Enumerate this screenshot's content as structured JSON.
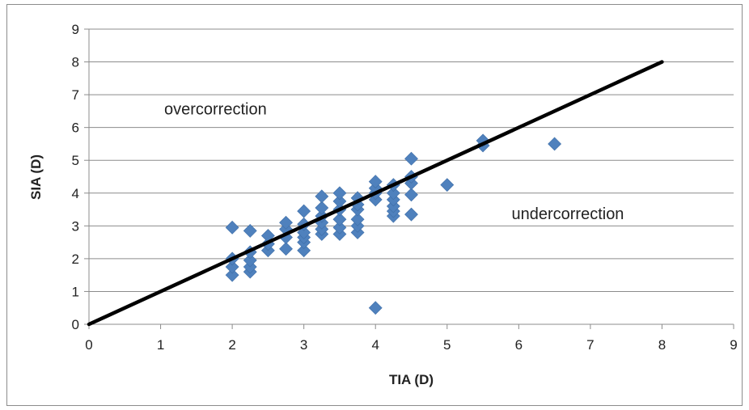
{
  "chart_data": {
    "type": "scatter",
    "xlabel": "TIA (D)",
    "ylabel": "SIA (D)",
    "xlim": [
      0,
      9
    ],
    "ylim": [
      0,
      9
    ],
    "xticks": [
      "0",
      "1",
      "2",
      "3",
      "4",
      "5",
      "6",
      "7",
      "8",
      "9"
    ],
    "yticks": [
      "0",
      "1",
      "2",
      "3",
      "4",
      "5",
      "6",
      "7",
      "8",
      "9"
    ],
    "grid": "horizontal",
    "legend": "none",
    "annotations": [
      {
        "text": "overcorrection",
        "x": 1.05,
        "y": 6.4
      },
      {
        "text": "undercorrection",
        "x": 5.9,
        "y": 3.2
      }
    ],
    "reference_line": {
      "x": [
        0,
        8
      ],
      "y": [
        0,
        8
      ],
      "color": "#000000"
    },
    "series": [
      {
        "marker": "diamond",
        "color": "#4F81BD",
        "points": [
          [
            2.0,
            1.5
          ],
          [
            2.0,
            1.75
          ],
          [
            2.0,
            2.0
          ],
          [
            2.0,
            2.95
          ],
          [
            2.25,
            1.6
          ],
          [
            2.25,
            1.75
          ],
          [
            2.25,
            1.95
          ],
          [
            2.25,
            2.2
          ],
          [
            2.25,
            2.85
          ],
          [
            2.5,
            2.25
          ],
          [
            2.5,
            2.45
          ],
          [
            2.5,
            2.7
          ],
          [
            2.75,
            2.3
          ],
          [
            2.75,
            2.65
          ],
          [
            2.75,
            2.9
          ],
          [
            2.75,
            3.1
          ],
          [
            3.0,
            2.25
          ],
          [
            3.0,
            2.5
          ],
          [
            3.0,
            2.65
          ],
          [
            3.0,
            2.8
          ],
          [
            3.0,
            3.05
          ],
          [
            3.0,
            3.45
          ],
          [
            3.25,
            2.75
          ],
          [
            3.25,
            2.9
          ],
          [
            3.25,
            3.1
          ],
          [
            3.25,
            3.3
          ],
          [
            3.25,
            3.55
          ],
          [
            3.25,
            3.9
          ],
          [
            3.5,
            2.75
          ],
          [
            3.5,
            2.95
          ],
          [
            3.5,
            3.2
          ],
          [
            3.5,
            3.5
          ],
          [
            3.5,
            3.75
          ],
          [
            3.5,
            4.0
          ],
          [
            3.75,
            2.8
          ],
          [
            3.75,
            3.0
          ],
          [
            3.75,
            3.2
          ],
          [
            3.75,
            3.5
          ],
          [
            3.75,
            3.65
          ],
          [
            3.75,
            3.85
          ],
          [
            4.0,
            0.5
          ],
          [
            4.0,
            3.8
          ],
          [
            4.0,
            4.0
          ],
          [
            4.0,
            4.15
          ],
          [
            4.0,
            4.35
          ],
          [
            4.25,
            3.3
          ],
          [
            4.25,
            3.45
          ],
          [
            4.25,
            3.6
          ],
          [
            4.25,
            3.8
          ],
          [
            4.25,
            4.0
          ],
          [
            4.25,
            4.25
          ],
          [
            4.5,
            3.35
          ],
          [
            4.5,
            3.95
          ],
          [
            4.5,
            4.3
          ],
          [
            4.5,
            4.5
          ],
          [
            4.5,
            5.05
          ],
          [
            5.0,
            4.25
          ],
          [
            5.5,
            5.45
          ],
          [
            5.5,
            5.6
          ],
          [
            6.5,
            5.5
          ]
        ]
      }
    ]
  }
}
